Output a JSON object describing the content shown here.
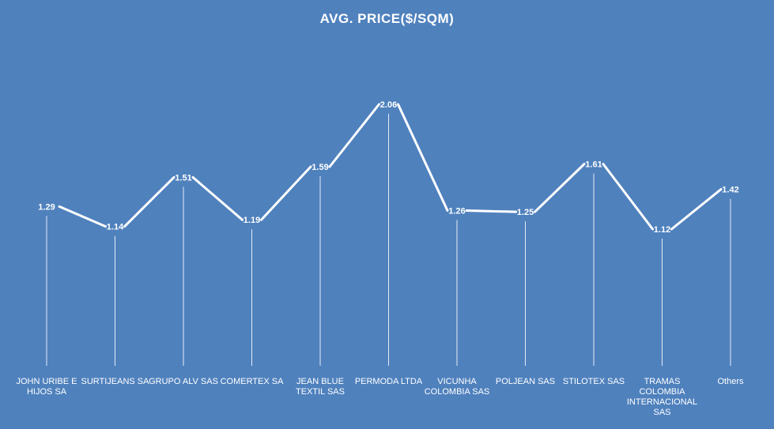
{
  "chart_data": {
    "type": "line",
    "title": "AVG. PRICE($/SQM)",
    "xlabel": "",
    "ylabel": "",
    "categories": [
      "JOHN URIBE E HIJOS SA",
      "SURTIJEANS SA",
      "GRUPO ALV SAS",
      "COMERTEX SA",
      "JEAN BLUE TEXTIL SAS",
      "PERMODA LTDA",
      "VICUNHA COLOMBIA SAS",
      "POLJEAN SAS",
      "STILOTEX SAS",
      "TRAMAS COLOMBIA INTERNACIONAL SAS",
      "Others"
    ],
    "series": [
      {
        "values": [
          1.29,
          1.14,
          1.51,
          1.19,
          1.59,
          2.06,
          1.26,
          1.25,
          1.61,
          1.12,
          1.42
        ],
        "data_labels": [
          "1.29",
          "1.14",
          "1.51",
          "1.19",
          "1.59",
          "2.06",
          "1.26",
          "1.25",
          "1.61",
          "1.12",
          "1.42"
        ]
      }
    ],
    "drop_lines": true,
    "grid": false,
    "legend": "none",
    "colors": {
      "background": "#4f81bd",
      "line": "#ffffff",
      "text": "#ffffff"
    }
  }
}
